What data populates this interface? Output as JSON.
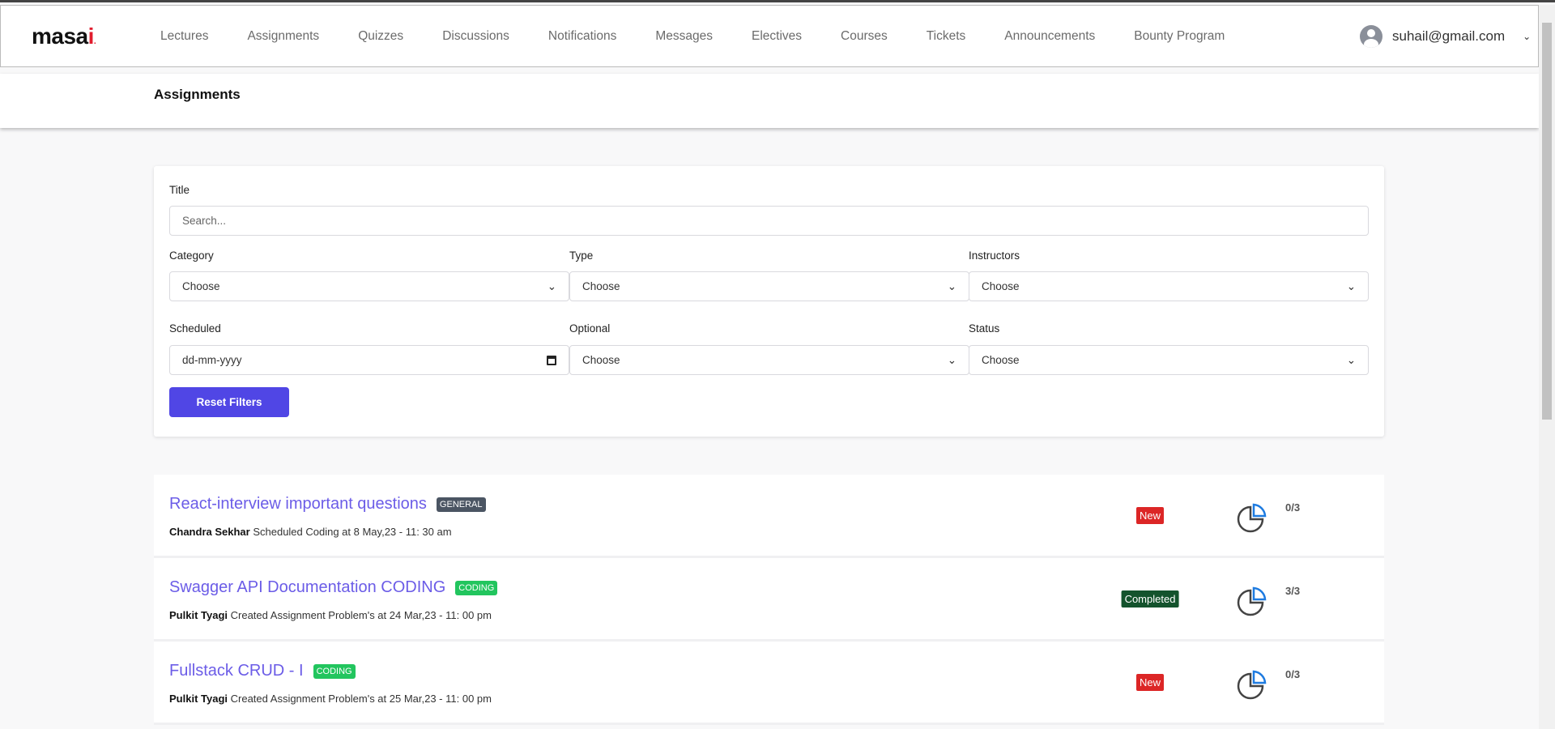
{
  "header": {
    "logo": "masai",
    "nav": [
      "Lectures",
      "Assignments",
      "Quizzes",
      "Discussions",
      "Notifications",
      "Messages",
      "Electives",
      "Courses",
      "Tickets",
      "Announcements",
      "Bounty Program"
    ],
    "user_email": "suhail@gmail.com"
  },
  "page_title": "Assignments",
  "filters": {
    "title_label": "Title",
    "title_placeholder": "Search...",
    "category_label": "Category",
    "category_value": "Choose",
    "type_label": "Type",
    "type_value": "Choose",
    "instructors_label": "Instructors",
    "instructors_value": "Choose",
    "scheduled_label": "Scheduled",
    "scheduled_placeholder": "dd-mm-yyyy",
    "optional_label": "Optional",
    "optional_value": "Choose",
    "status_label": "Status",
    "status_value": "Choose",
    "reset_label": "Reset Filters"
  },
  "assignments": [
    {
      "title": "React-interview important questions",
      "tag": "GENERAL",
      "tag_color": "#4b5563",
      "author": "Chandra Sekhar",
      "detail": "Scheduled Coding at 8 May,23 - 11: 30 am",
      "status": "New",
      "status_color": "#dc2626",
      "count": "0/3"
    },
    {
      "title": "Swagger API Documentation CODING",
      "tag": "CODING",
      "tag_color": "#22c55e",
      "author": "Pulkit Tyagi",
      "detail": "Created Assignment Problem's at 24 Mar,23 - 11: 00 pm",
      "status": "Completed",
      "status_color": "#14532d",
      "count": "3/3"
    },
    {
      "title": "Fullstack CRUD - I",
      "tag": "CODING",
      "tag_color": "#22c55e",
      "author": "Pulkit Tyagi",
      "detail": "Created Assignment Problem's at 25 Mar,23 - 11: 00 pm",
      "status": "New",
      "status_color": "#dc2626",
      "count": "0/3"
    }
  ]
}
